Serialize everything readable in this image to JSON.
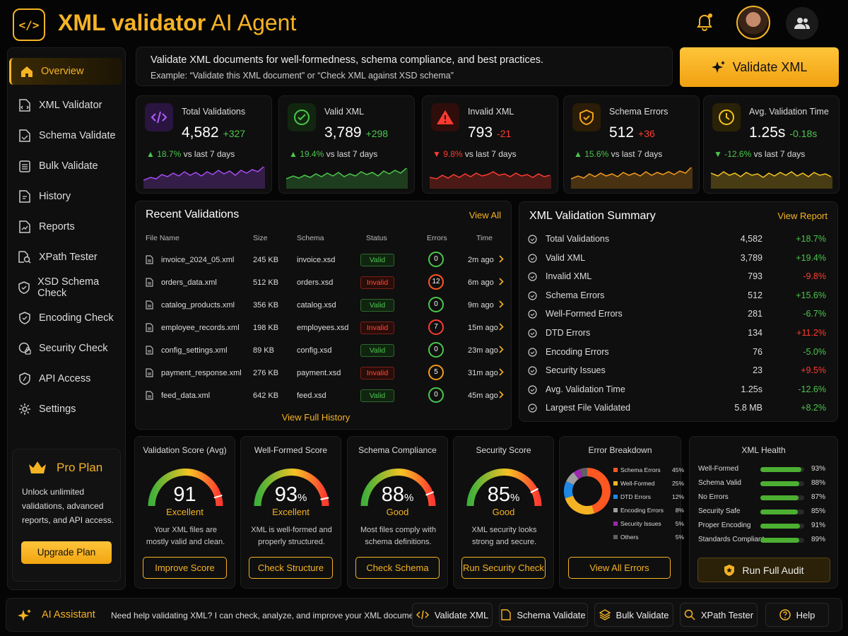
{
  "app": {
    "title_bold": "XML validator",
    "title_rest": "AI Agent",
    "logo_glyph": "</>"
  },
  "header": {
    "notification_icon": "bell-icon",
    "users_icon": "users-icon"
  },
  "sidebar": {
    "items": [
      {
        "label": "Overview",
        "icon": "home-icon",
        "active": true
      },
      {
        "label": "XML Validator",
        "icon": "file-code-icon"
      },
      {
        "label": "Schema Validate",
        "icon": "file-check-icon"
      },
      {
        "label": "Bulk Validate",
        "icon": "list-icon"
      },
      {
        "label": "History",
        "icon": "history-icon"
      },
      {
        "label": "Reports",
        "icon": "report-icon"
      },
      {
        "label": "XPath Tester",
        "icon": "xpath-icon"
      },
      {
        "label": "XSD Schema Check",
        "icon": "shield-check-icon"
      },
      {
        "label": "Encoding Check",
        "icon": "shield-icon"
      },
      {
        "label": "Security Check",
        "icon": "lock-icon"
      },
      {
        "label": "API Access",
        "icon": "api-icon"
      },
      {
        "label": "Settings",
        "icon": "gear-icon"
      }
    ],
    "pro": {
      "title": "Pro Plan",
      "desc": "Unlock unlimited validations, advanced reports, and API access.",
      "button": "Upgrade Plan"
    }
  },
  "intro": {
    "line1": "Validate XML documents for well-formedness, schema compliance, and best practices.",
    "line2": "Example: “Validate this XML document” or “Check XML against XSD schema”",
    "cta": "Validate XML"
  },
  "kpis": [
    {
      "label": "Total Validations",
      "value": "4,582",
      "delta": "+327",
      "change": "▲ 18.7%",
      "suffix": "vs last 7 days",
      "color": "#a24cf0"
    },
    {
      "label": "Valid XML",
      "value": "3,789",
      "delta": "+298",
      "change": "▲ 19.4%",
      "suffix": "vs last 7 days",
      "color": "#4cc64c"
    },
    {
      "label": "Invalid XML",
      "value": "793",
      "delta": "-21",
      "change": "▼ 9.8%",
      "suffix": "vs last 7 days",
      "color": "#ff3b30"
    },
    {
      "label": "Schema Errors",
      "value": "512",
      "delta": "+36",
      "change": "▲ 15.6%",
      "suffix": "vs last 7 days",
      "color": "#f59a1c"
    },
    {
      "label": "Avg. Validation Time",
      "value": "1.25s",
      "delta": "-0.18s",
      "change": "▼ -12.6%",
      "suffix": "vs last 7 days",
      "color": "#f5c324"
    }
  ],
  "recent": {
    "title": "Recent Validations",
    "link": "View All",
    "headers": [
      "File Name",
      "Size",
      "Schema",
      "Status",
      "Errors",
      "Time"
    ],
    "rows": [
      {
        "file": "invoice_2024_05.xml",
        "size": "245 KB",
        "schema": "invoice.xsd",
        "status": "Valid",
        "errors": "0",
        "time": "2m ago"
      },
      {
        "file": "orders_data.xml",
        "size": "512 KB",
        "schema": "orders.xsd",
        "status": "Invalid",
        "errors": "12",
        "time": "6m ago"
      },
      {
        "file": "catalog_products.xml",
        "size": "356 KB",
        "schema": "catalog.xsd",
        "status": "Valid",
        "errors": "0",
        "time": "9m ago"
      },
      {
        "file": "employee_records.xml",
        "size": "198 KB",
        "schema": "employees.xsd",
        "status": "Invalid",
        "errors": "7",
        "time": "15m ago"
      },
      {
        "file": "config_settings.xml",
        "size": "89 KB",
        "schema": "config.xsd",
        "status": "Valid",
        "errors": "0",
        "time": "23m ago"
      },
      {
        "file": "payment_response.xml",
        "size": "276 KB",
        "schema": "payment.xsd",
        "status": "Invalid",
        "errors": "5",
        "time": "31m ago"
      },
      {
        "file": "feed_data.xml",
        "size": "642 KB",
        "schema": "feed.xsd",
        "status": "Valid",
        "errors": "0",
        "time": "45m ago"
      }
    ],
    "footer": "View Full History"
  },
  "summary": {
    "title": "XML Validation Summary",
    "link": "View Report",
    "rows": [
      {
        "label": "Total Validations",
        "value": "4,582",
        "change": "+18.7%",
        "good": true
      },
      {
        "label": "Valid XML",
        "value": "3,789",
        "change": "+19.4%",
        "good": true
      },
      {
        "label": "Invalid XML",
        "value": "793",
        "change": "-9.8%",
        "good": false
      },
      {
        "label": "Schema Errors",
        "value": "512",
        "change": "+15.6%",
        "good": true
      },
      {
        "label": "Well-Formed Errors",
        "value": "281",
        "change": "-6.7%",
        "good": true
      },
      {
        "label": "DTD Errors",
        "value": "134",
        "change": "+11.2%",
        "good": false
      },
      {
        "label": "Encoding Errors",
        "value": "76",
        "change": "-5.0%",
        "good": true
      },
      {
        "label": "Security Issues",
        "value": "23",
        "change": "+9.5%",
        "good": false
      },
      {
        "label": "Avg. Validation Time",
        "value": "1.25s",
        "change": "-12.6%",
        "good": true
      },
      {
        "label": "Largest File Validated",
        "value": "5.8 MB",
        "change": "+8.2%",
        "good": true
      }
    ]
  },
  "gauges": [
    {
      "title": "Validation Score (Avg)",
      "value": "91",
      "unit": "",
      "level": 0.91,
      "grade": "Excellent",
      "desc": "Your XML files are mostly valid and clean.",
      "button": "Improve Score"
    },
    {
      "title": "Well-Formed Score",
      "value": "93",
      "unit": "%",
      "level": 0.93,
      "grade": "Excellent",
      "desc": "XML is well-formed and properly structured.",
      "button": "Check Structure"
    },
    {
      "title": "Schema Compliance",
      "value": "88",
      "unit": "%",
      "level": 0.88,
      "grade": "Good",
      "desc": "Most files comply with schema definitions.",
      "button": "Check Schema"
    },
    {
      "title": "Security Score",
      "value": "85",
      "unit": "%",
      "level": 0.85,
      "grade": "Good",
      "desc": "XML security looks strong and secure.",
      "button": "Run Security Check"
    }
  ],
  "breakdown": {
    "title": "Error Breakdown",
    "items": [
      {
        "label": "Schema Errors",
        "pct": "45%",
        "value": 45,
        "color": "#ff5722"
      },
      {
        "label": "Well-Formed",
        "pct": "25%",
        "value": 25,
        "color": "#f5b324"
      },
      {
        "label": "DTD Errors",
        "pct": "12%",
        "value": 12,
        "color": "#1e88e5"
      },
      {
        "label": "Encoding Errors",
        "pct": "8%",
        "value": 8,
        "color": "#9e9e9e"
      },
      {
        "label": "Security Issues",
        "pct": "5%",
        "value": 5,
        "color": "#9c27b0"
      },
      {
        "label": "Others",
        "pct": "5%",
        "value": 5,
        "color": "#616161"
      }
    ],
    "button": "View All Errors"
  },
  "health": {
    "title": "XML Health",
    "items": [
      {
        "label": "Well-Formed",
        "pct": "93%",
        "value": 93
      },
      {
        "label": "Schema Valid",
        "pct": "88%",
        "value": 88
      },
      {
        "label": "No Errors",
        "pct": "87%",
        "value": 87
      },
      {
        "label": "Security Safe",
        "pct": "85%",
        "value": 85
      },
      {
        "label": "Proper Encoding",
        "pct": "91%",
        "value": 91
      },
      {
        "label": "Standards Compliant",
        "pct": "89%",
        "value": 89
      }
    ],
    "button": "Run Full Audit"
  },
  "footer": {
    "assistant": "AI Assistant",
    "prompt": "Need help validating XML? I can check, analyze, and improve your XML documents.",
    "buttons": [
      "Validate XML",
      "Schema Validate",
      "Bulk Validate",
      "XPath Tester",
      "Help"
    ]
  }
}
